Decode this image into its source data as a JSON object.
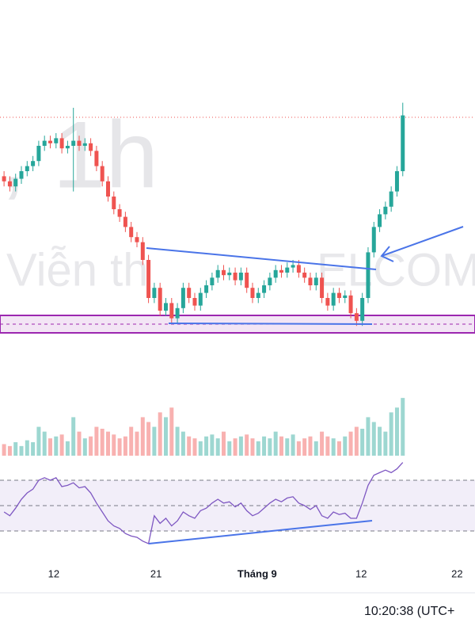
{
  "chart_data": {
    "type": "candlestick",
    "watermark": ", 1h",
    "watermark_left": "Viễn th",
    "watermark_right": "ELCOM",
    "time_label": "10:20:38 (UTC+",
    "xlim": [
      -0.7,
      81.5
    ],
    "xticks": [
      {
        "value": 8.6,
        "label": "12"
      },
      {
        "value": 26.3,
        "label": "21"
      },
      {
        "value": 43.8,
        "label": "Tháng 9"
      },
      {
        "value": 61.8,
        "label": "12"
      },
      {
        "value": 78.4,
        "label": "22"
      }
    ],
    "ylim": [
      0,
      100
    ],
    "up_color": "#26a69a",
    "down_color": "#ef5350",
    "open": [
      68,
      66,
      64,
      67,
      70,
      72,
      74,
      80,
      82,
      81,
      83,
      79,
      80,
      82,
      80,
      81,
      78,
      72,
      66,
      60,
      55,
      52,
      48,
      44,
      42,
      35,
      20,
      24,
      15,
      18,
      12,
      16,
      24,
      20,
      17,
      22,
      25,
      28,
      31,
      29,
      30,
      27,
      30,
      24,
      20,
      22,
      25,
      28,
      31,
      30,
      32,
      33,
      30,
      28,
      25,
      28,
      20,
      17,
      22,
      20,
      21,
      14,
      11,
      20,
      38,
      48,
      53,
      56,
      62,
      70
    ],
    "high": [
      70,
      68,
      69,
      72,
      74,
      76,
      82,
      84,
      84,
      85,
      85,
      82,
      95,
      84,
      83,
      83,
      80,
      74,
      68,
      62,
      57,
      54,
      50,
      46,
      44,
      37,
      26,
      26,
      20,
      20,
      18,
      26,
      26,
      22,
      24,
      27,
      30,
      33,
      33,
      32,
      32,
      32,
      32,
      26,
      24,
      27,
      30,
      33,
      33,
      34,
      35,
      35,
      32,
      30,
      30,
      30,
      22,
      24,
      24,
      23,
      23,
      16,
      22,
      40,
      50,
      55,
      58,
      64,
      72,
      97
    ],
    "low": [
      64,
      62,
      62,
      65,
      68,
      70,
      72,
      78,
      79,
      79,
      77,
      77,
      62,
      78,
      78,
      76,
      70,
      64,
      58,
      53,
      50,
      46,
      42,
      40,
      33,
      18,
      18,
      13,
      13,
      10,
      10,
      14,
      18,
      15,
      15,
      20,
      23,
      26,
      27,
      27,
      25,
      25,
      22,
      18,
      18,
      20,
      23,
      26,
      28,
      28,
      30,
      28,
      26,
      23,
      23,
      18,
      15,
      15,
      18,
      18,
      12,
      9,
      9,
      18,
      36,
      46,
      51,
      54,
      60,
      68
    ],
    "close": [
      66,
      64,
      67,
      70,
      72,
      74,
      80,
      82,
      81,
      83,
      79,
      80,
      82,
      80,
      81,
      78,
      72,
      66,
      60,
      55,
      52,
      48,
      44,
      42,
      35,
      20,
      24,
      15,
      18,
      12,
      16,
      24,
      20,
      17,
      22,
      25,
      28,
      31,
      29,
      30,
      27,
      30,
      24,
      20,
      22,
      25,
      28,
      31,
      30,
      32,
      33,
      30,
      28,
      25,
      28,
      20,
      17,
      22,
      20,
      21,
      14,
      11,
      20,
      38,
      48,
      53,
      56,
      62,
      70,
      92
    ],
    "volume": {
      "ylim": [
        0,
        70
      ],
      "values": [
        12,
        10,
        14,
        10,
        16,
        14,
        30,
        25,
        18,
        20,
        22,
        15,
        40,
        25,
        18,
        20,
        30,
        28,
        25,
        22,
        18,
        20,
        30,
        25,
        40,
        35,
        30,
        45,
        40,
        50,
        30,
        25,
        20,
        18,
        15,
        20,
        22,
        18,
        25,
        15,
        18,
        20,
        22,
        18,
        15,
        20,
        18,
        25,
        20,
        18,
        22,
        15,
        18,
        20,
        15,
        25,
        20,
        18,
        15,
        20,
        25,
        30,
        28,
        40,
        35,
        30,
        25,
        45,
        50,
        60
      ]
    },
    "rsi": {
      "ylim": [
        10,
        90
      ],
      "color": "#7e57c2",
      "levels": [
        70,
        50,
        30
      ],
      "values": [
        45,
        42,
        48,
        55,
        60,
        63,
        70,
        72,
        70,
        72,
        65,
        66,
        68,
        64,
        65,
        60,
        52,
        45,
        38,
        34,
        32,
        28,
        26,
        25,
        22,
        20,
        42,
        36,
        40,
        34,
        38,
        45,
        42,
        40,
        46,
        48,
        52,
        55,
        52,
        53,
        49,
        52,
        46,
        42,
        44,
        48,
        52,
        55,
        53,
        56,
        57,
        52,
        50,
        47,
        50,
        42,
        40,
        45,
        43,
        44,
        40,
        40,
        52,
        66,
        74,
        76,
        78,
        76,
        79,
        84
      ]
    }
  }
}
